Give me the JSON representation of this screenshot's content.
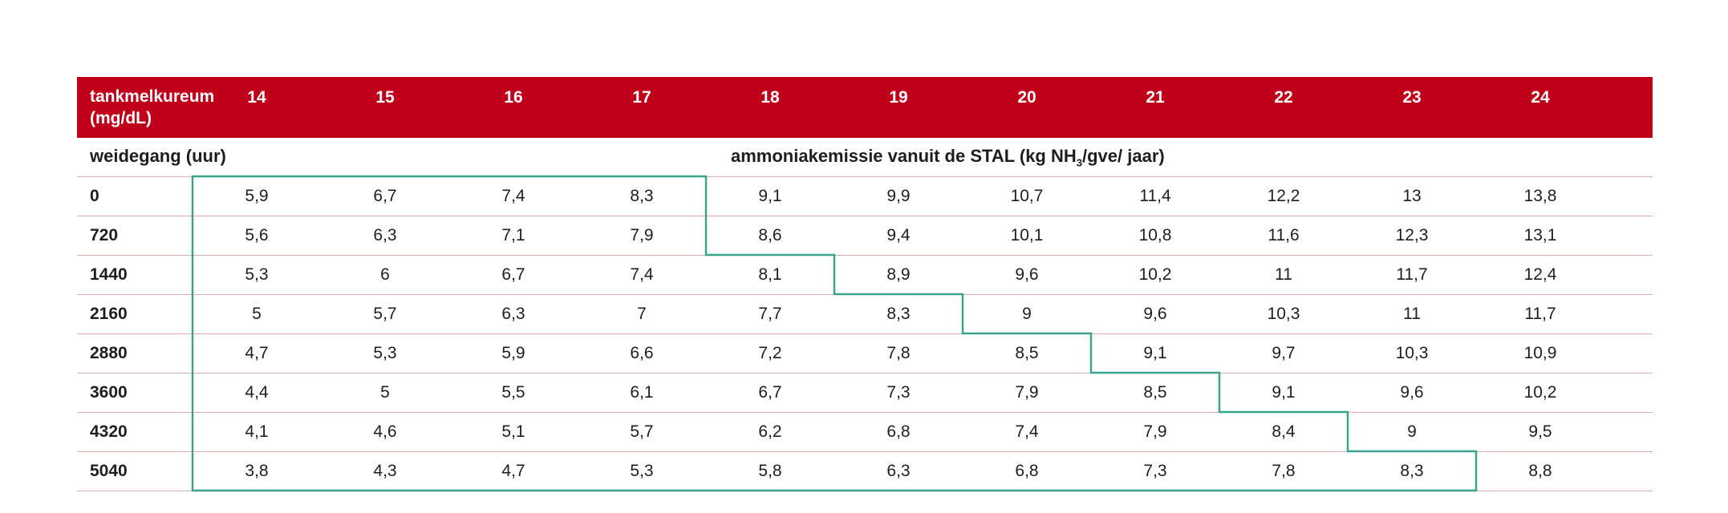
{
  "table": {
    "header_label_line1": "tankmelkureum",
    "header_label_line2": "(mg/dL)",
    "columns": [
      "14",
      "15",
      "16",
      "17",
      "18",
      "19",
      "20",
      "21",
      "22",
      "23",
      "24"
    ],
    "row_header_label": "weidegang (uur)",
    "subtitle_prefix": "ammoniakemissie vanuit de STAL (kg NH",
    "subtitle_subscript": "3",
    "subtitle_suffix": "/gve/ jaar)",
    "rows": [
      {
        "label": "0",
        "values": [
          "5,9",
          "6,7",
          "7,4",
          "8,3",
          "9,1",
          "9,9",
          "10,7",
          "11,4",
          "12,2",
          "13",
          "13,8"
        ]
      },
      {
        "label": "720",
        "values": [
          "5,6",
          "6,3",
          "7,1",
          "7,9",
          "8,6",
          "9,4",
          "10,1",
          "10,8",
          "11,6",
          "12,3",
          "13,1"
        ]
      },
      {
        "label": "1440",
        "values": [
          "5,3",
          "6",
          "6,7",
          "7,4",
          "8,1",
          "8,9",
          "9,6",
          "10,2",
          "11",
          "11,7",
          "12,4"
        ]
      },
      {
        "label": "2160",
        "values": [
          "5",
          "5,7",
          "6,3",
          "7",
          "7,7",
          "8,3",
          "9",
          "9,6",
          "10,3",
          "11",
          "11,7"
        ]
      },
      {
        "label": "2880",
        "values": [
          "4,7",
          "5,3",
          "5,9",
          "6,6",
          "7,2",
          "7,8",
          "8,5",
          "9,1",
          "9,7",
          "10,3",
          "10,9"
        ]
      },
      {
        "label": "3600",
        "values": [
          "4,4",
          "5",
          "5,5",
          "6,1",
          "6,7",
          "7,3",
          "7,9",
          "8,5",
          "9,1",
          "9,6",
          "10,2"
        ]
      },
      {
        "label": "4320",
        "values": [
          "4,1",
          "4,6",
          "5,1",
          "5,7",
          "6,2",
          "6,8",
          "7,4",
          "7,9",
          "8,4",
          "9",
          "9,5"
        ]
      },
      {
        "label": "5040",
        "values": [
          "3,8",
          "4,3",
          "4,7",
          "5,3",
          "5,8",
          "6,3",
          "6,8",
          "7,3",
          "7,8",
          "8,3",
          "8,8"
        ]
      }
    ],
    "highlight_cells_per_row": [
      4,
      4,
      5,
      6,
      7,
      8,
      9,
      10
    ]
  },
  "colors": {
    "header_background": "#c0001a",
    "row_divider": "#e3a9b0",
    "highlight_outline": "#3aa38c"
  }
}
